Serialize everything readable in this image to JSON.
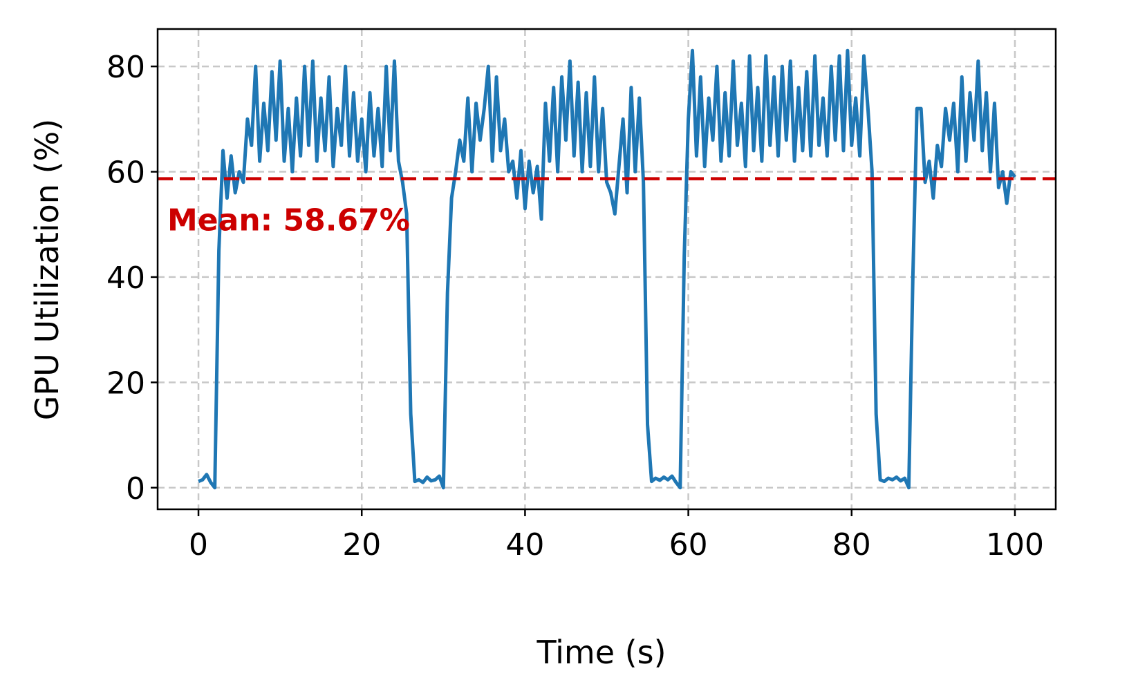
{
  "chart_data": {
    "type": "line",
    "xlabel": "Time (s)",
    "ylabel": "GPU Utilization (%)",
    "xlim": [
      -5,
      105
    ],
    "ylim": [
      -4.1,
      87.1
    ],
    "xticks": [
      0,
      20,
      40,
      60,
      80,
      100
    ],
    "yticks": [
      0,
      20,
      40,
      60,
      80
    ],
    "grid": true,
    "reference_line": {
      "value": 58.67,
      "label": "Mean: 58.67%",
      "color": "#cc0000"
    },
    "x": [
      0,
      0.5,
      1,
      1.5,
      2,
      2.5,
      3,
      3.5,
      4,
      4.5,
      5,
      5.5,
      6,
      6.5,
      7,
      7.5,
      8,
      8.5,
      9,
      9.5,
      10,
      10.5,
      11,
      11.5,
      12,
      12.5,
      13,
      13.5,
      14,
      14.5,
      15,
      15.5,
      16,
      16.5,
      17,
      17.5,
      18,
      18.5,
      19,
      19.5,
      20,
      20.5,
      21,
      21.5,
      22,
      22.5,
      23,
      23.5,
      24,
      24.5,
      25,
      25.5,
      26,
      26.5,
      27,
      27.5,
      28,
      28.5,
      29,
      29.5,
      30,
      30.5,
      31,
      31.5,
      32,
      32.5,
      33,
      33.5,
      34,
      34.5,
      35,
      35.5,
      36,
      36.5,
      37,
      37.5,
      38,
      38.5,
      39,
      39.5,
      40,
      40.5,
      41,
      41.5,
      42,
      42.5,
      43,
      43.5,
      44,
      44.5,
      45,
      45.5,
      46,
      46.5,
      47,
      47.5,
      48,
      48.5,
      49,
      49.5,
      50,
      50.5,
      51,
      51.5,
      52,
      52.5,
      53,
      53.5,
      54,
      54.5,
      55,
      55.5,
      56,
      56.5,
      57,
      57.5,
      58,
      58.5,
      59,
      59.5,
      60,
      60.5,
      61,
      61.5,
      62,
      62.5,
      63,
      63.5,
      64,
      64.5,
      65,
      65.5,
      66,
      66.5,
      67,
      67.5,
      68,
      68.5,
      69,
      69.5,
      70,
      70.5,
      71,
      71.5,
      72,
      72.5,
      73,
      73.5,
      74,
      74.5,
      75,
      75.5,
      76,
      76.5,
      77,
      77.5,
      78,
      78.5,
      79,
      79.5,
      80,
      80.5,
      81,
      81.5,
      82,
      82.5,
      83,
      83.5,
      84,
      84.5,
      85,
      85.5,
      86,
      86.5,
      87,
      87.5,
      88,
      88.5,
      89,
      89.5,
      90,
      90.5,
      91,
      91.5,
      92,
      92.5,
      93,
      93.5,
      94,
      94.5,
      95,
      95.5,
      96,
      96.5,
      97,
      97.5,
      98,
      98.5,
      99,
      99.5,
      100
    ],
    "series": [
      {
        "color": "#1f77b4",
        "values": [
          1.2,
          1.5,
          2.5,
          1.0,
          0,
          45,
          64,
          55,
          63,
          56,
          60,
          58,
          70,
          65,
          80,
          62,
          73,
          64,
          79,
          66,
          81,
          62,
          72,
          60,
          74,
          63,
          80,
          65,
          81,
          62,
          74,
          64,
          78,
          61,
          72,
          65,
          80,
          63,
          75,
          62,
          70,
          60,
          75,
          63,
          72,
          61,
          80,
          64,
          81,
          62,
          58,
          52,
          14,
          1.2,
          1.5,
          1.0,
          2.0,
          1.3,
          1.5,
          2.2,
          0,
          37,
          55,
          60,
          66,
          62,
          74,
          60,
          73,
          66,
          72,
          80,
          62,
          78,
          64,
          70,
          60,
          62,
          55,
          64,
          53,
          62,
          56,
          61,
          51,
          73,
          62,
          76,
          60,
          78,
          66,
          81,
          63,
          77,
          60,
          75,
          61,
          78,
          60,
          72,
          58,
          56,
          52,
          61,
          70,
          56,
          76,
          60,
          74,
          58,
          12,
          1.2,
          1.8,
          1.4,
          2.0,
          1.5,
          2.2,
          1.0,
          0,
          44,
          70,
          83,
          63,
          78,
          61,
          74,
          66,
          80,
          62,
          75,
          63,
          81,
          65,
          73,
          61,
          82,
          64,
          76,
          62,
          82,
          65,
          78,
          63,
          80,
          66,
          81,
          62,
          76,
          64,
          79,
          63,
          82,
          65,
          74,
          63,
          80,
          66,
          82,
          64,
          83,
          65,
          74,
          63,
          82,
          72,
          60,
          14,
          1.5,
          1.2,
          1.8,
          1.5,
          2.0,
          1.3,
          1.8,
          0,
          40,
          72,
          72,
          58,
          62,
          55,
          65,
          61,
          72,
          66,
          73,
          60,
          78,
          62,
          75,
          66,
          81,
          64,
          75,
          60,
          73,
          57,
          60,
          54,
          60,
          59
        ]
      }
    ]
  }
}
